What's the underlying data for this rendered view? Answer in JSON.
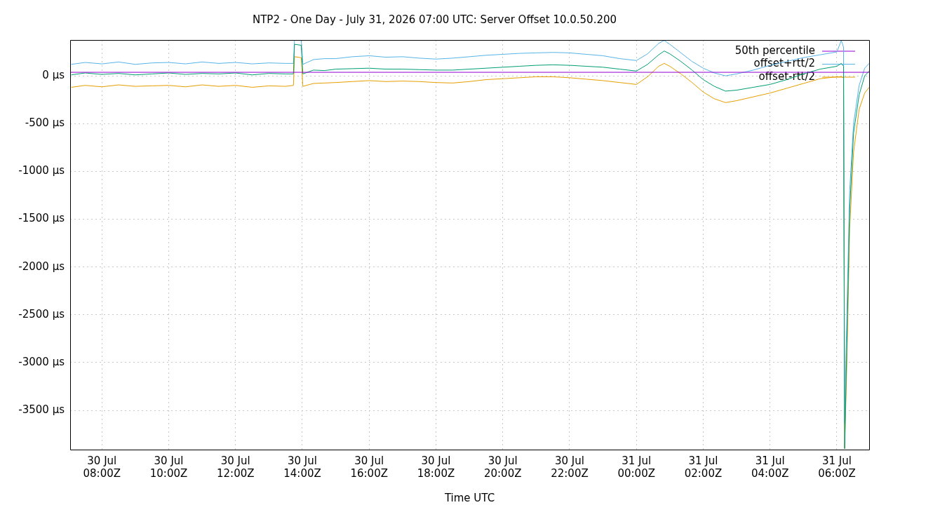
{
  "chart_data": {
    "type": "line",
    "title": "NTP2 - One Day - July 31, 2026 07:00 UTC: Server Offset 10.0.50.200",
    "xlabel": "Time UTC",
    "x": [
      "2026-07-30T07:05",
      "2026-07-30T07:30",
      "2026-07-30T08:00",
      "2026-07-30T08:30",
      "2026-07-30T09:00",
      "2026-07-30T09:30",
      "2026-07-30T10:00",
      "2026-07-30T10:30",
      "2026-07-30T11:00",
      "2026-07-30T11:30",
      "2026-07-30T12:00",
      "2026-07-30T12:30",
      "2026-07-30T13:00",
      "2026-07-30T13:30",
      "2026-07-30T13:44",
      "2026-07-30T13:46",
      "2026-07-30T13:58",
      "2026-07-30T14:01",
      "2026-07-30T14:20",
      "2026-07-30T14:40",
      "2026-07-30T15:00",
      "2026-07-30T15:30",
      "2026-07-30T16:00",
      "2026-07-30T16:30",
      "2026-07-30T17:00",
      "2026-07-30T17:30",
      "2026-07-30T18:00",
      "2026-07-30T18:30",
      "2026-07-30T19:00",
      "2026-07-30T19:30",
      "2026-07-30T20:00",
      "2026-07-30T20:30",
      "2026-07-30T21:00",
      "2026-07-30T21:30",
      "2026-07-30T22:00",
      "2026-07-30T22:30",
      "2026-07-30T23:00",
      "2026-07-30T23:30",
      "2026-07-31T00:00",
      "2026-07-31T00:20",
      "2026-07-31T00:40",
      "2026-07-31T00:50",
      "2026-07-31T01:00",
      "2026-07-31T01:20",
      "2026-07-31T01:40",
      "2026-07-31T02:00",
      "2026-07-31T02:20",
      "2026-07-31T02:40",
      "2026-07-31T03:00",
      "2026-07-31T03:30",
      "2026-07-31T04:00",
      "2026-07-31T04:30",
      "2026-07-31T05:00",
      "2026-07-31T05:30",
      "2026-07-31T06:00",
      "2026-07-31T06:08",
      "2026-07-31T06:12",
      "2026-07-31T06:14",
      "2026-07-31T06:18",
      "2026-07-31T06:23",
      "2026-07-31T06:30",
      "2026-07-31T06:40",
      "2026-07-31T06:50",
      "2026-07-31T06:58"
    ],
    "series": [
      {
        "type": "line",
        "name": "50th percentile",
        "color": "#9400d3",
        "x": [
          "2026-07-30T07:03",
          "2026-07-31T06:58"
        ],
        "values": [
          37,
          37
        ]
      },
      {
        "color": "#009e73",
        "values": [
          10,
          30,
          15,
          25,
          10,
          20,
          30,
          15,
          25,
          20,
          30,
          10,
          25,
          20,
          20,
          330,
          320,
          20,
          60,
          55,
          70,
          75,
          80,
          70,
          70,
          65,
          60,
          60,
          70,
          80,
          90,
          100,
          110,
          115,
          110,
          100,
          90,
          70,
          50,
          120,
          220,
          260,
          230,
          150,
          60,
          -40,
          -110,
          -160,
          -150,
          -120,
          -90,
          -40,
          20,
          70,
          100,
          130,
          100,
          -3900,
          -2800,
          -1400,
          -600,
          -200,
          0,
          50
        ]
      },
      {
        "name": "offset+rtt/2",
        "color": "#56b4e9",
        "values": [
          120,
          140,
          125,
          145,
          120,
          135,
          140,
          125,
          145,
          130,
          140,
          125,
          135,
          130,
          130,
          375,
          370,
          120,
          170,
          180,
          180,
          200,
          210,
          195,
          200,
          185,
          175,
          185,
          200,
          215,
          225,
          235,
          240,
          245,
          240,
          225,
          210,
          180,
          160,
          230,
          340,
          370,
          330,
          240,
          150,
          80,
          30,
          0,
          20,
          60,
          110,
          150,
          190,
          220,
          250,
          370,
          300,
          -3640,
          -2500,
          -1200,
          -500,
          -100,
          80,
          130
        ]
      },
      {
        "name": "offset-rtt/2",
        "color": "#e69f00",
        "values": [
          -120,
          -100,
          -115,
          -95,
          -110,
          -105,
          -100,
          -115,
          -95,
          -110,
          -100,
          -120,
          -105,
          -110,
          -100,
          200,
          190,
          -110,
          -80,
          -75,
          -70,
          -60,
          -50,
          -60,
          -55,
          -60,
          -70,
          -75,
          -60,
          -40,
          -30,
          -20,
          -10,
          -10,
          -20,
          -35,
          -50,
          -70,
          -90,
          -10,
          100,
          130,
          100,
          20,
          -70,
          -170,
          -240,
          -280,
          -260,
          -220,
          -180,
          -130,
          -80,
          -30,
          -10,
          -10,
          -20,
          -3900,
          -3000,
          -1600,
          -800,
          -350,
          -180,
          -120
        ]
      }
    ],
    "xlim": [
      "2026-07-30T07:03",
      "2026-07-31T06:58"
    ],
    "xticks": [
      {
        "value": "2026-07-30T08:00",
        "label": "30 Jul\n08:00Z"
      },
      {
        "value": "2026-07-30T10:00",
        "label": "30 Jul\n10:00Z"
      },
      {
        "value": "2026-07-30T12:00",
        "label": "30 Jul\n12:00Z"
      },
      {
        "value": "2026-07-30T14:00",
        "label": "30 Jul\n14:00Z"
      },
      {
        "value": "2026-07-30T16:00",
        "label": "30 Jul\n16:00Z"
      },
      {
        "value": "2026-07-30T18:00",
        "label": "30 Jul\n18:00Z"
      },
      {
        "value": "2026-07-30T20:00",
        "label": "30 Jul\n20:00Z"
      },
      {
        "value": "2026-07-30T22:00",
        "label": "30 Jul\n22:00Z"
      },
      {
        "value": "2026-07-31T00:00",
        "label": "31 Jul\n00:00Z"
      },
      {
        "value": "2026-07-31T02:00",
        "label": "31 Jul\n02:00Z"
      },
      {
        "value": "2026-07-31T04:00",
        "label": "31 Jul\n04:00Z"
      },
      {
        "value": "2026-07-31T06:00",
        "label": "31 Jul\n06:00Z"
      }
    ],
    "ylim": [
      -3910,
      375
    ],
    "yticks": [
      {
        "value": 0,
        "label": "0 µs"
      },
      {
        "value": -500,
        "label": "-500 µs"
      },
      {
        "value": -1000,
        "label": "-1000 µs"
      },
      {
        "value": -1500,
        "label": "-1500 µs"
      },
      {
        "value": -2000,
        "label": "-2000 µs"
      },
      {
        "value": -2500,
        "label": "-2500 µs"
      },
      {
        "value": -3000,
        "label": "-3000 µs"
      },
      {
        "value": -3500,
        "label": "-3500 µs"
      }
    ],
    "grid": true,
    "legend": "top right",
    "marker": "none",
    "line_style": "solid"
  }
}
